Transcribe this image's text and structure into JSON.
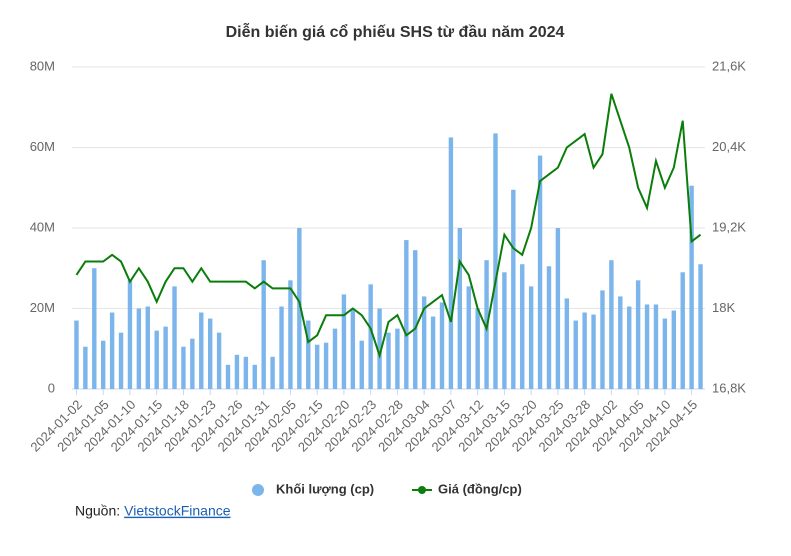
{
  "chart_data": {
    "type": "combo",
    "title": "Diễn biến giá cổ phiếu SHS từ đầu năm 2024",
    "categories": [
      "2024-01-02",
      null,
      null,
      "2024-01-05",
      null,
      null,
      "2024-01-10",
      null,
      null,
      "2024-01-15",
      null,
      null,
      "2024-01-18",
      null,
      null,
      "2024-01-23",
      null,
      null,
      "2024-01-26",
      null,
      null,
      "2024-01-31",
      null,
      null,
      "2024-02-05",
      null,
      null,
      "2024-02-15",
      null,
      null,
      "2024-02-20",
      null,
      null,
      "2024-02-23",
      null,
      null,
      "2024-02-28",
      null,
      null,
      "2024-03-04",
      null,
      null,
      "2024-03-07",
      null,
      null,
      "2024-03-12",
      null,
      null,
      "2024-03-15",
      null,
      null,
      "2024-03-20",
      null,
      null,
      "2024-03-25",
      null,
      null,
      "2024-03-28",
      null,
      null,
      "2024-04-02",
      null,
      null,
      "2024-04-05",
      null,
      null,
      "2024-04-10",
      null,
      null,
      "2024-04-15",
      null
    ],
    "series": [
      {
        "name": "Khối lượng (cp)",
        "type": "bar",
        "color": "#7cb5ec",
        "values": [
          17,
          10.5,
          30,
          12,
          19,
          14,
          27,
          20,
          20.5,
          14.5,
          15.5,
          25.5,
          10.5,
          12.5,
          19,
          17.5,
          14,
          6,
          8.5,
          8,
          6,
          32,
          8,
          20.5,
          27,
          40,
          17,
          11,
          11.5,
          15,
          23.5,
          20,
          12,
          26,
          20,
          14,
          15,
          37,
          34.5,
          23,
          18,
          21.5,
          62.5,
          40,
          25.5,
          20,
          32,
          63.5,
          29,
          49.5,
          31,
          25.5,
          58,
          30.5,
          40,
          22.5,
          17,
          19,
          18.5,
          24.5,
          32,
          23,
          20.5,
          27,
          21,
          21,
          17.5,
          19.5,
          29,
          50.5,
          31
        ]
      },
      {
        "name": "Giá (đồng/cp)",
        "type": "line",
        "axis": "y2",
        "color": "#0b7d0b",
        "values": [
          18.5,
          18.7,
          18.7,
          18.7,
          18.8,
          18.7,
          18.4,
          18.6,
          18.4,
          18.1,
          18.4,
          18.6,
          18.6,
          18.4,
          18.6,
          18.4,
          18.4,
          18.4,
          18.4,
          18.4,
          18.3,
          18.4,
          18.3,
          18.3,
          18.3,
          18.1,
          17.5,
          17.6,
          17.9,
          17.9,
          17.9,
          18.0,
          17.9,
          17.7,
          17.3,
          17.8,
          17.9,
          17.6,
          17.7,
          18.0,
          18.1,
          18.2,
          17.8,
          18.7,
          18.5,
          18.0,
          17.7,
          18.4,
          19.1,
          18.9,
          18.8,
          19.2,
          19.9,
          20.0,
          20.1,
          20.4,
          20.5,
          20.6,
          20.1,
          20.3,
          21.2,
          20.8,
          20.4,
          19.8,
          19.5,
          20.2,
          19.8,
          20.1,
          20.8,
          19.0,
          19.1
        ]
      }
    ],
    "ylim": [
      0,
      80
    ],
    "yticks": [
      0,
      {
        "value": 20,
        "label": "20M"
      },
      {
        "value": 40,
        "label": "40M"
      },
      {
        "value": 60,
        "label": "60M"
      },
      {
        "value": 80,
        "label": "80M"
      }
    ],
    "y2lim": [
      16.8,
      21.6
    ],
    "y2ticks": [
      {
        "value": 16.8,
        "label": "16,8K"
      },
      {
        "value": 18,
        "label": "18K"
      },
      {
        "value": 19.2,
        "label": "19,2K"
      },
      {
        "value": 20.4,
        "label": "20,4K"
      },
      {
        "value": 21.6,
        "label": "21,6K"
      }
    ],
    "grid": true,
    "legend": "bottom"
  },
  "source": {
    "label": "Nguồn:",
    "link": "VietstockFinance"
  }
}
